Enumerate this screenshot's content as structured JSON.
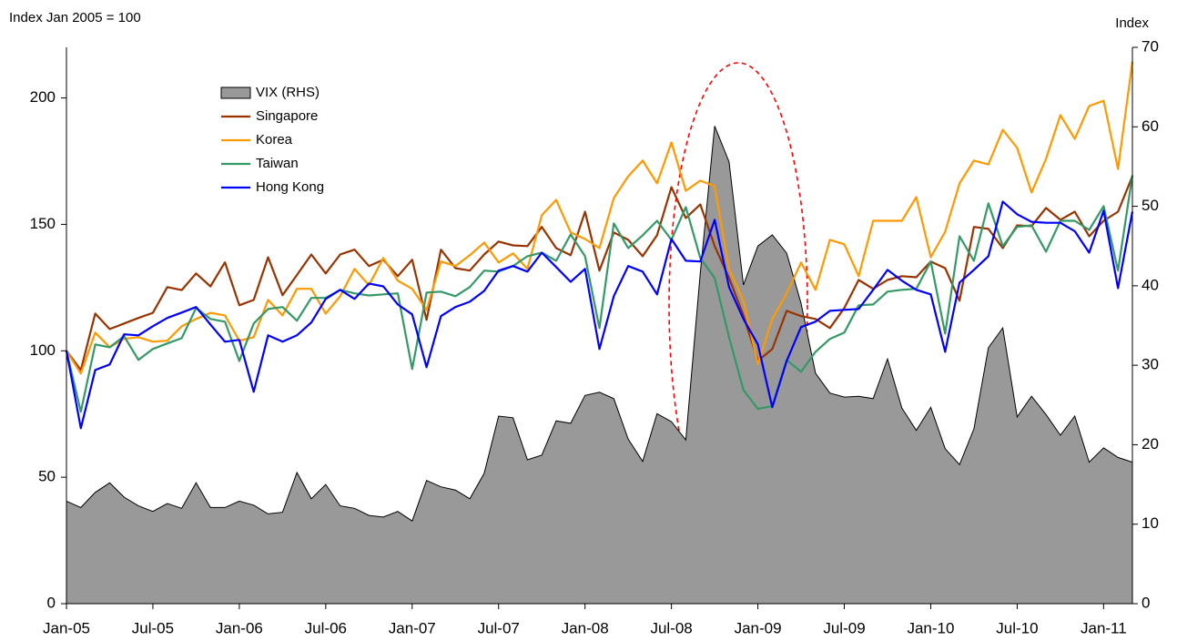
{
  "chart_data": {
    "type": "line",
    "y_label": "Index Jan 2005 = 100",
    "y2_label": "Index",
    "categories": [
      "Jan-05",
      null,
      null,
      null,
      null,
      null,
      "Jul-05",
      null,
      null,
      null,
      null,
      null,
      "Jan-06",
      null,
      null,
      null,
      null,
      null,
      "Jul-06",
      null,
      null,
      null,
      null,
      null,
      "Jan-07",
      null,
      null,
      null,
      null,
      null,
      "Jul-07",
      null,
      null,
      null,
      null,
      null,
      "Jan-08",
      null,
      null,
      null,
      null,
      null,
      "Jul-08",
      null,
      null,
      null,
      null,
      null,
      "Jan-09",
      null,
      null,
      null,
      null,
      null,
      "Jul-09",
      null,
      null,
      null,
      null,
      null,
      "Jan-10",
      null,
      null,
      null,
      null,
      null,
      "Jul-10",
      null,
      null,
      null,
      null,
      null,
      "Jan-11",
      null,
      null
    ],
    "ylim": [
      0,
      220
    ],
    "yticks": [
      0,
      50,
      100,
      150,
      200
    ],
    "y2lim": [
      0,
      70
    ],
    "y2ticks": [
      0,
      10,
      20,
      30,
      40,
      50,
      60,
      70
    ],
    "legend": "upper left",
    "series": [
      {
        "name": "VIX (RHS)",
        "type": "area",
        "axis": "y2",
        "color": "#999999",
        "values": [
          12.9,
          12.1,
          14,
          15.2,
          13.4,
          12.3,
          11.6,
          12.6,
          12,
          15.2,
          12.1,
          12.1,
          12.9,
          12.4,
          11.3,
          11.5,
          16.5,
          13.2,
          15,
          12.3,
          12,
          11.1,
          10.9,
          11.6,
          10.4,
          15.5,
          14.7,
          14.3,
          13.2,
          16.4,
          23.6,
          23.4,
          18.1,
          18.7,
          23,
          22.7,
          26.2,
          26.6,
          25.8,
          20.7,
          17.9,
          23.9,
          22.9,
          20.6,
          41.6,
          60.1,
          55.6,
          40.1,
          45,
          46.4,
          44.1,
          37.8,
          29,
          26.5,
          26,
          26.1,
          25.8,
          30.8,
          24.6,
          21.8,
          24.7,
          19.5,
          17.5,
          22,
          32.2,
          34.7,
          23.5,
          26.1,
          23.8,
          21.2,
          23.6,
          17.8,
          19.6,
          18.4,
          17.8
        ]
      },
      {
        "name": "Singapore",
        "color": "#993300",
        "values": [
          100,
          92.4,
          114.7,
          108.6,
          110.8,
          113,
          115,
          125.2,
          124,
          130.6,
          125.5,
          135,
          118,
          120.1,
          137,
          122,
          130,
          138.1,
          130.6,
          138.1,
          140,
          133.5,
          136,
          129.5,
          136,
          112.2,
          140,
          132.7,
          131.7,
          138.1,
          143.2,
          141.7,
          141.4,
          149,
          140.6,
          137.8,
          155,
          131.7,
          146.8,
          143.9,
          137.4,
          145.7,
          164.7,
          152.5,
          157.9,
          141.4,
          128.8,
          114,
          96,
          100.7,
          115.8,
          113.7,
          112.6,
          109,
          116.9,
          128,
          124.5,
          128,
          129.5,
          129.1,
          135.3,
          132.7,
          119.8,
          149,
          148.2,
          140.6,
          149.6,
          149.3,
          156.5,
          151.8,
          155,
          145.3,
          151.4,
          155,
          169
        ]
      },
      {
        "name": "Korea",
        "color": "#ff9900",
        "values": [
          100,
          91,
          107.2,
          101.4,
          104.7,
          105.4,
          103.6,
          104,
          109.7,
          112.6,
          115,
          114,
          104,
          105.4,
          120.1,
          114,
          124.5,
          124.5,
          114.7,
          121.6,
          132.4,
          125.9,
          136.7,
          127.7,
          124.5,
          116.2,
          135.3,
          133.5,
          137.8,
          142.8,
          134.9,
          138.5,
          132.4,
          153.6,
          159.7,
          146.8,
          144.2,
          140.6,
          160.4,
          169,
          175.2,
          166.2,
          182.4,
          163.3,
          167.3,
          165.1,
          132.4,
          119.8,
          94.6,
          112.6,
          122.7,
          134.9,
          124.1,
          143.9,
          142.1,
          129.5,
          151.4,
          151.4,
          151.4,
          160.8,
          137,
          147.1,
          166.2,
          175.2,
          173.7,
          187.4,
          180.2,
          162.6,
          175.9,
          193.2,
          183.8,
          196.8,
          198.9,
          171.9,
          214.4
        ]
      },
      {
        "name": "Taiwan",
        "color": "#339966",
        "values": [
          100,
          75.9,
          102.5,
          101.4,
          105.8,
          96.4,
          100.7,
          102.9,
          105,
          116.9,
          112.6,
          111.5,
          96,
          110.8,
          116.5,
          117.3,
          111.9,
          120.9,
          120.9,
          124.1,
          122.7,
          121.9,
          122.3,
          122.7,
          92.8,
          123,
          123.4,
          121.6,
          125.2,
          131.7,
          131.3,
          133.5,
          137.4,
          138.8,
          135.6,
          146,
          137.4,
          109,
          150.4,
          140.6,
          145.7,
          151.4,
          143.9,
          156.8,
          136.7,
          128.8,
          105.4,
          84.5,
          77,
          78.1,
          96.4,
          91.7,
          99.6,
          104.7,
          107.2,
          118,
          118.3,
          123.4,
          124.1,
          124.5,
          135.3,
          106.8,
          145.3,
          135.6,
          158.3,
          141.4,
          149,
          149.6,
          139.2,
          151.4,
          151.4,
          147.8,
          157.2,
          131.7,
          169.4
        ]
      },
      {
        "name": "Hong Kong",
        "color": "#0000ff",
        "values": [
          100,
          69.4,
          92.4,
          94.6,
          106.5,
          106.1,
          109.7,
          113,
          115.1,
          117.3,
          110.4,
          103.6,
          104.3,
          83.8,
          106.1,
          103.6,
          106.1,
          111.2,
          120.5,
          124.1,
          120.5,
          126.6,
          125.5,
          118.3,
          114.4,
          93.5,
          113.7,
          117.3,
          119.4,
          123.7,
          131.7,
          133.5,
          131.3,
          138.8,
          133.1,
          127.3,
          132.4,
          100.7,
          121.6,
          133.5,
          131.3,
          122.3,
          144.2,
          135.6,
          135.3,
          151.8,
          125.2,
          112.6,
          102.5,
          77.7,
          96,
          109.4,
          111.5,
          115.8,
          116.2,
          116.5,
          124.1,
          132,
          127.7,
          124.1,
          122.3,
          99.6,
          127,
          132,
          137.4,
          159,
          154,
          151,
          150.6,
          150.6,
          147.3,
          138.8,
          155.4,
          124.8,
          155
        ]
      }
    ]
  }
}
